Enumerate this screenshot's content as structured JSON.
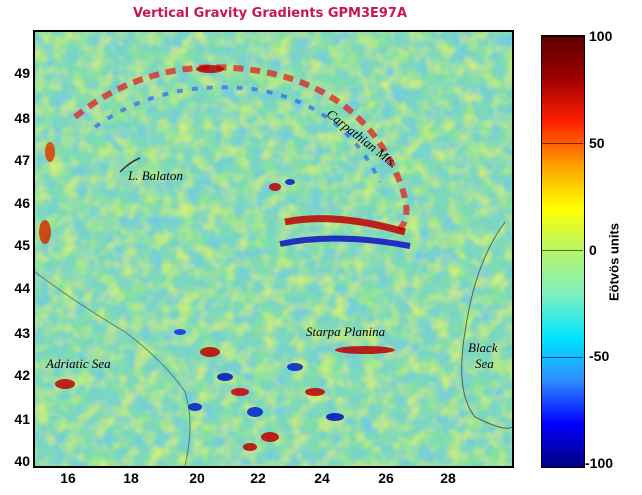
{
  "title": "Vertical Gravity Gradients GPM3E97A",
  "colors": {
    "title": "#c8174d",
    "background_field": "#86e39a"
  },
  "axes": {
    "x_ticks": [
      "16",
      "18",
      "20",
      "22",
      "24",
      "26",
      "28"
    ],
    "y_ticks": [
      "49",
      "48",
      "47",
      "46",
      "45",
      "44",
      "43",
      "42",
      "41",
      "40"
    ]
  },
  "map_labels": {
    "carpathian": "Carpathian Mts.",
    "balaton": "L. Balaton",
    "starpa": "Starpa Planina",
    "adriatic": "Adriatic Sea",
    "black_sea_line1": "Black",
    "black_sea_line2": "Sea"
  },
  "colorbar": {
    "label": "Eötvös units",
    "ticks": [
      "100",
      "50",
      "0",
      "-50",
      "-100"
    ],
    "range": [
      -100,
      100
    ],
    "colormap_stops": [
      "#000080",
      "#0000ff",
      "#2d8cff",
      "#00e5ff",
      "#7ef0c0",
      "#b6f56a",
      "#ffff00",
      "#ffa000",
      "#ff2000",
      "#a00000",
      "#5a0000"
    ]
  }
}
